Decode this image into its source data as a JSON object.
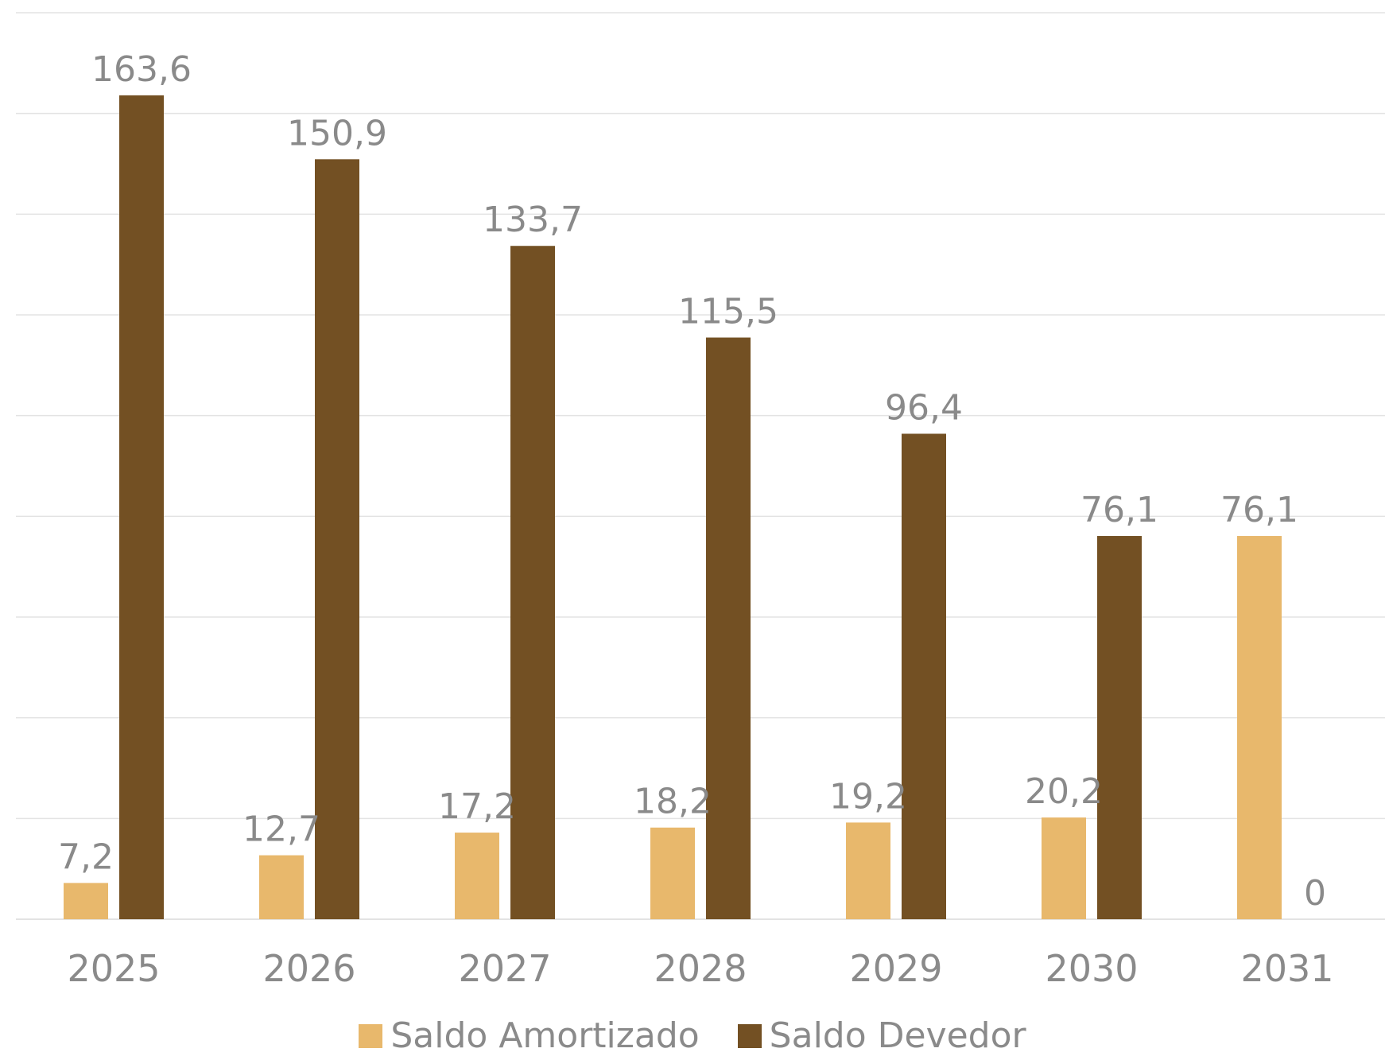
{
  "chart_data": {
    "type": "bar",
    "categories": [
      "2025",
      "2026",
      "2027",
      "2028",
      "2029",
      "2030",
      "2031"
    ],
    "series": [
      {
        "name": "Saldo Amortizado",
        "color": "#E8B86C",
        "values": [
          7.2,
          12.7,
          17.2,
          18.2,
          19.2,
          20.2,
          76.1
        ],
        "labels": [
          "7,2",
          "12,7",
          "17,2",
          "18,2",
          "19,2",
          "20,2",
          "76,1"
        ]
      },
      {
        "name": "Saldo Devedor",
        "color": "#735023",
        "values": [
          163.6,
          150.9,
          133.7,
          115.5,
          96.4,
          76.1,
          0
        ],
        "labels": [
          "163,6",
          "150,9",
          "133,7",
          "115,5",
          "96,4",
          "76,1",
          "0"
        ]
      }
    ],
    "ylim": [
      0,
      180
    ],
    "grid": true,
    "legend_position": "bottom",
    "grid_color": "#E3E3E3",
    "text_color": "#8A8A8A"
  }
}
